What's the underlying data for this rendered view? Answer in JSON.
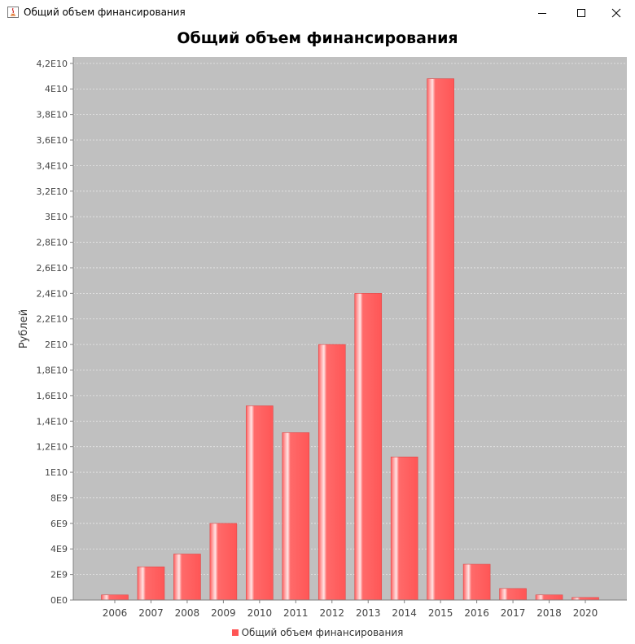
{
  "window": {
    "title": "Общий объем финансирования",
    "icon": "java-icon"
  },
  "colors": {
    "plot_background": "#c0c0c0",
    "bar": "#ff5555",
    "bar_highlight": "#ffc8c8",
    "grid": "#e8e8e8"
  },
  "chart_data": {
    "type": "bar",
    "title": "Общий объем финансирования",
    "xlabel": "",
    "ylabel": "Рублей",
    "categories": [
      "2006",
      "2007",
      "2008",
      "2009",
      "2010",
      "2011",
      "2012",
      "2013",
      "2014",
      "2015",
      "2016",
      "2017",
      "2018",
      "2020"
    ],
    "series": [
      {
        "name": "Общий объем финансирования",
        "values": [
          400000000,
          2600000000,
          3600000000,
          6000000000,
          15200000000,
          13100000000,
          20000000000,
          24000000000,
          11200000000,
          40800000000,
          2800000000,
          900000000,
          400000000,
          200000000
        ]
      }
    ],
    "ylim": [
      0,
      42500000000
    ],
    "yticks": [
      0,
      2000000000,
      4000000000,
      6000000000,
      8000000000,
      10000000000,
      12000000000,
      14000000000,
      16000000000,
      18000000000,
      20000000000,
      22000000000,
      24000000000,
      26000000000,
      28000000000,
      30000000000,
      32000000000,
      34000000000,
      36000000000,
      38000000000,
      40000000000,
      42000000000
    ],
    "ytick_labels": [
      "0E0",
      "2E9",
      "4E9",
      "6E9",
      "8E9",
      "1E10",
      "1,2E10",
      "1,4E10",
      "1,6E10",
      "1,8E10",
      "2E10",
      "2,2E10",
      "2,4E10",
      "2,6E10",
      "2,8E10",
      "3E10",
      "3,2E10",
      "3,4E10",
      "3,6E10",
      "3,8E10",
      "4E10",
      "4,2E10"
    ],
    "grid": true,
    "legend": "bottom-center"
  }
}
